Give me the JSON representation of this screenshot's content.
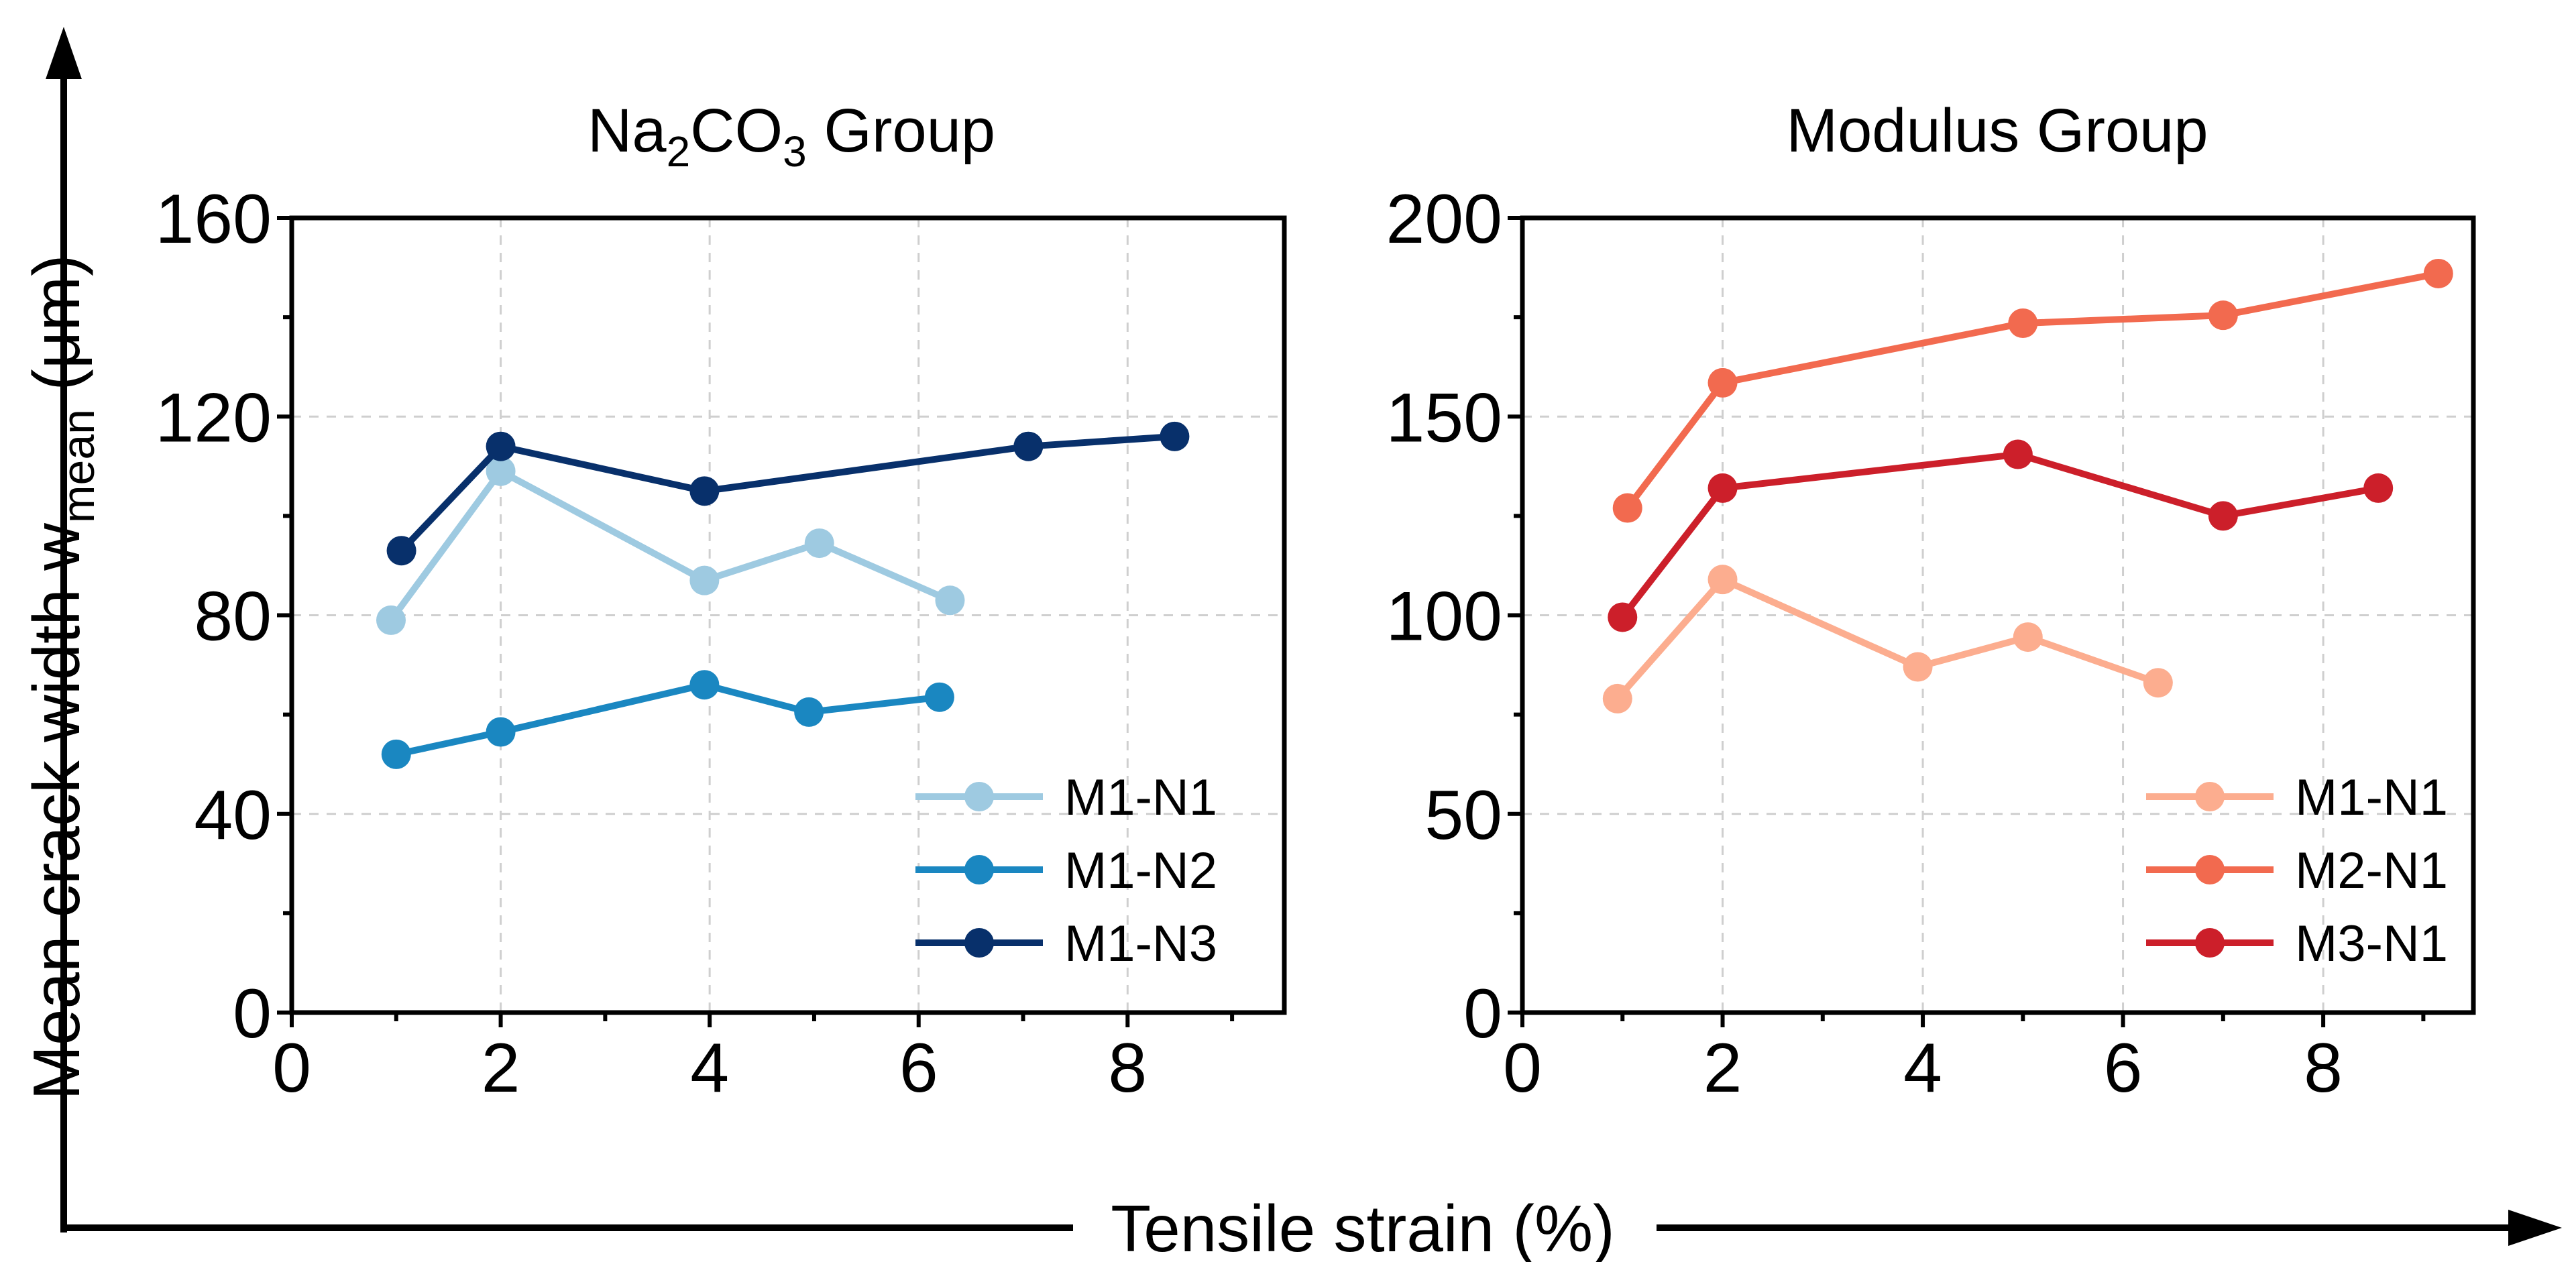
{
  "figure": {
    "ylabel": "Mean crack width w",
    "ylabel_sub": "mean",
    "ylabel_unit": " (μm)",
    "xlabel": "Tensile strain (%)"
  },
  "chart_data": [
    {
      "type": "line",
      "title": "Na2CO3 Group",
      "title_parts": {
        "a": "Na",
        "sub1": "2",
        "b": "CO",
        "sub2": "3",
        "c": " Group"
      },
      "xlabel": "Tensile strain (%)",
      "ylabel": "Mean crack width w_mean (μm)",
      "xlim": [
        0,
        9.5
      ],
      "ylim": [
        0,
        160
      ],
      "xticks": [
        0,
        2,
        4,
        6,
        8
      ],
      "yticks": [
        0,
        40,
        80,
        120,
        160
      ],
      "grid": true,
      "legend_position": "bottom-right",
      "series": [
        {
          "name": "M1-N1",
          "color": "#9ecae1",
          "x": [
            0.95,
            2.0,
            3.95,
            5.05,
            6.3
          ],
          "y": [
            79,
            109,
            87,
            94.5,
            83
          ]
        },
        {
          "name": "M1-N2",
          "color": "#1a87c1",
          "x": [
            1.0,
            2.0,
            3.95,
            4.95,
            6.2
          ],
          "y": [
            52,
            56.5,
            66,
            60.5,
            63.5
          ]
        },
        {
          "name": "M1-N3",
          "color": "#08306b",
          "x": [
            1.05,
            2.0,
            3.95,
            7.05,
            8.45
          ],
          "y": [
            93,
            114,
            105,
            114,
            116
          ]
        }
      ]
    },
    {
      "type": "line",
      "title": "Modulus Group",
      "xlabel": "Tensile strain (%)",
      "ylabel": "Mean crack width w_mean (μm)",
      "xlim": [
        0,
        9.5
      ],
      "ylim": [
        0,
        200
      ],
      "xticks": [
        0,
        2,
        4,
        6,
        8
      ],
      "yticks": [
        0,
        50,
        100,
        150,
        200
      ],
      "grid": true,
      "legend_position": "bottom-right",
      "series": [
        {
          "name": "M1-N1",
          "color": "#fcad8f",
          "x": [
            0.95,
            2.0,
            3.95,
            5.05,
            6.35
          ],
          "y": [
            79,
            109,
            87,
            94.5,
            83
          ]
        },
        {
          "name": "M2-N1",
          "color": "#f26a4f",
          "x": [
            1.05,
            2.0,
            5.0,
            7.0,
            9.15
          ],
          "y": [
            127,
            158.5,
            173.5,
            175.5,
            186
          ]
        },
        {
          "name": "M3-N1",
          "color": "#cc1f2a",
          "x": [
            1.0,
            2.0,
            4.95,
            7.0,
            8.55
          ],
          "y": [
            99.5,
            132,
            140.5,
            125,
            132
          ]
        }
      ]
    }
  ]
}
